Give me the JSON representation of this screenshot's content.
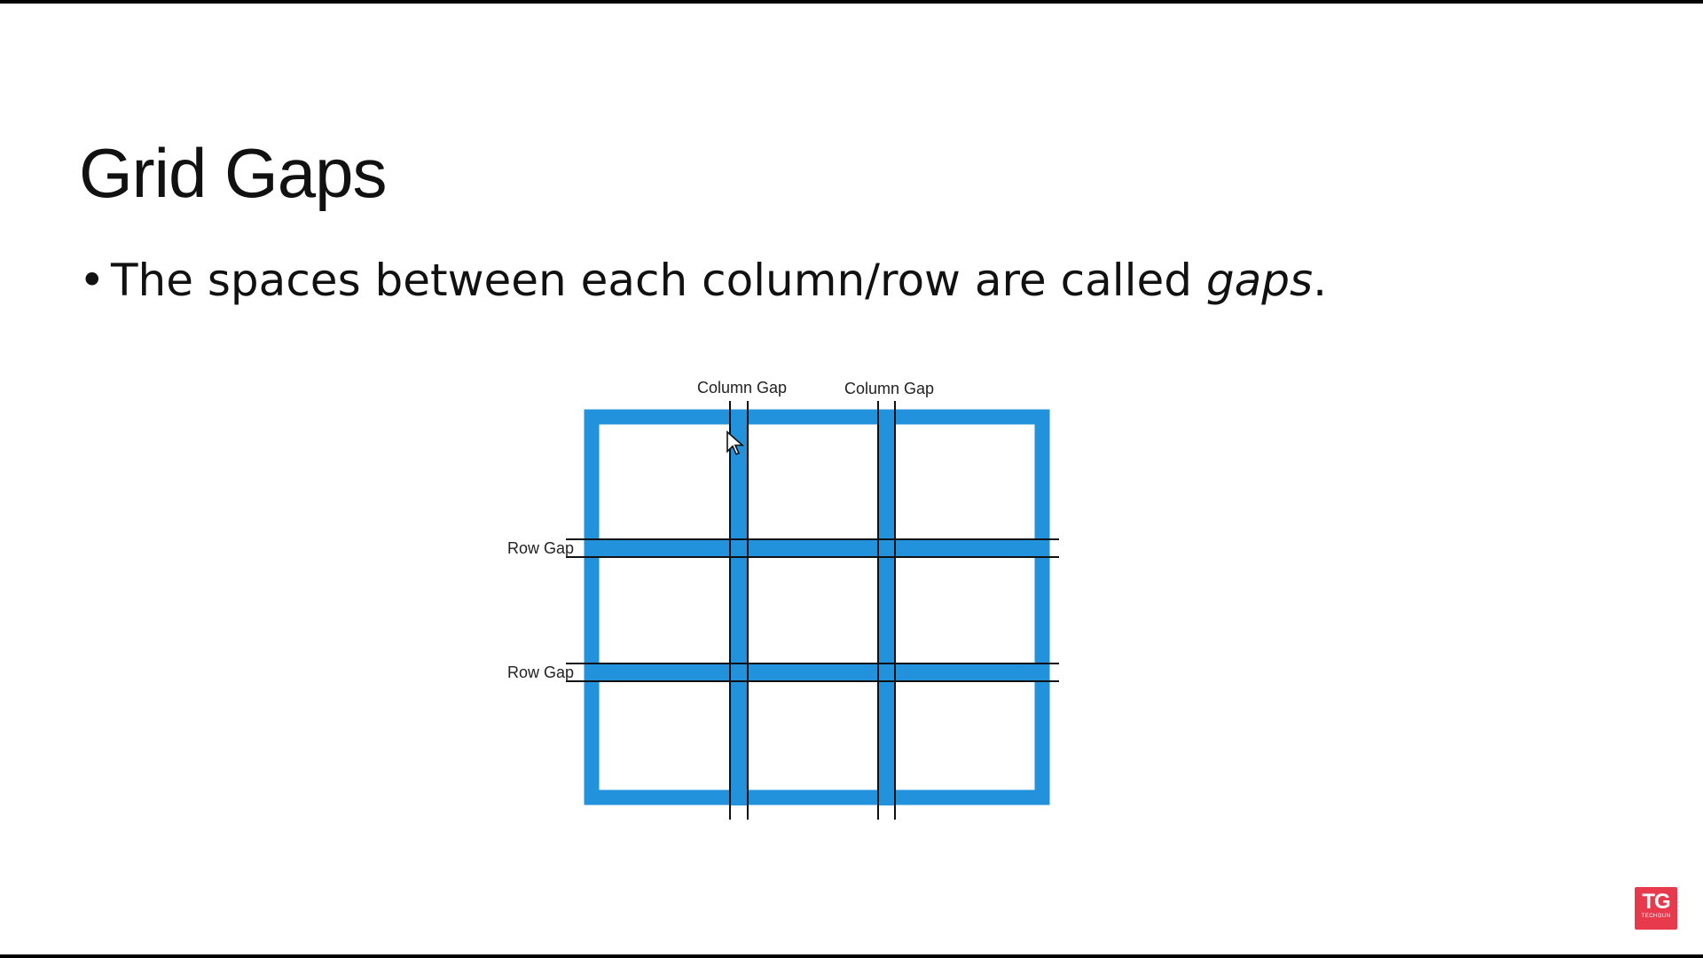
{
  "slide": {
    "title": "Grid Gaps",
    "bullet_bullet_char": "•",
    "bullet_text_main": "The spaces between each column/row are called ",
    "bullet_text_emph": "gaps",
    "bullet_text_end": "."
  },
  "diagram": {
    "column_gap_labels": [
      "Column Gap",
      "Column Gap"
    ],
    "row_gap_labels": [
      "Row Gap",
      "Row Gap"
    ],
    "grid_color": "#2392dc",
    "line_color": "#111111"
  },
  "logo": {
    "main": "TG",
    "sub": "TECHGUN",
    "color": "#e83a4d"
  }
}
